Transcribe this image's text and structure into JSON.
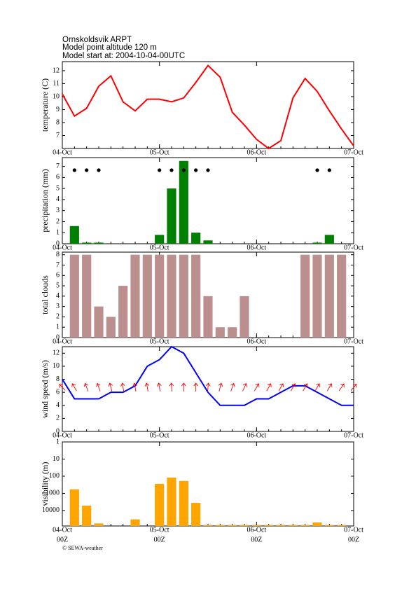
{
  "header": {
    "station": "Ornskoldsvik ARPT",
    "altitude": "Model point altitude  120 m",
    "model_start": "Model start at: 2004-10-04-00UTC"
  },
  "footer": "© SEWA-weather",
  "chart_data": [
    {
      "type": "line",
      "y_label": "temperature (C)",
      "color": "#ff0000",
      "x": [
        0,
        3,
        6,
        9,
        12,
        15,
        18,
        21,
        24,
        27,
        30,
        33,
        36,
        39,
        42,
        45,
        48,
        51,
        54,
        57,
        60,
        63,
        66,
        69,
        72
      ],
      "values": [
        10.2,
        8.5,
        9.1,
        10.8,
        11.6,
        9.6,
        8.9,
        9.8,
        9.8,
        9.6,
        9.9,
        11.1,
        12.4,
        11.5,
        8.8,
        7.8,
        6.7,
        6.0,
        6.6,
        9.9,
        11.4,
        10.4,
        8.9,
        7.5,
        6.2
      ],
      "xlim": [
        0,
        72
      ],
      "xticks": [
        {
          "value": 0,
          "label": "04-Oct"
        },
        {
          "value": 24,
          "label": "05-Oct"
        },
        {
          "value": 48,
          "label": "06-Oct"
        },
        {
          "value": 72,
          "label": "07-Oct"
        }
      ],
      "ylim": [
        6,
        12.7
      ],
      "yticks": [
        7,
        8,
        9,
        10,
        11,
        12
      ]
    },
    {
      "type": "bar",
      "y_label": "precipitation (mm)",
      "color": "#008000",
      "dots": true,
      "x": [
        3,
        6,
        9,
        12,
        15,
        18,
        21,
        24,
        27,
        30,
        33,
        36,
        39,
        42,
        45,
        48,
        51,
        54,
        57,
        60,
        63,
        66,
        69
      ],
      "values": [
        1.6,
        0.1,
        0.1,
        0,
        0,
        0,
        0,
        0.8,
        5.0,
        7.5,
        1.0,
        0.3,
        0,
        0,
        0,
        0,
        0,
        0,
        0,
        0,
        0.1,
        0.8,
        0
      ],
      "xlim": [
        0,
        72
      ],
      "xticks": [
        {
          "value": 0,
          "label": "04-Oct"
        },
        {
          "value": 24,
          "label": "05-Oct"
        },
        {
          "value": 48,
          "label": "06-Oct"
        },
        {
          "value": 72,
          "label": "07-Oct"
        }
      ],
      "ylim": [
        0,
        7.8
      ],
      "yticks": [
        0,
        1,
        2,
        3,
        4,
        5,
        6,
        7
      ]
    },
    {
      "type": "bar",
      "y_label": "total clouds",
      "color": "#bc8f8f",
      "x": [
        3,
        6,
        9,
        12,
        15,
        18,
        21,
        24,
        27,
        30,
        33,
        36,
        39,
        42,
        45,
        48,
        51,
        54,
        57,
        60,
        63,
        66,
        69
      ],
      "values": [
        8,
        8,
        3,
        2,
        5,
        8,
        8,
        8,
        8,
        8,
        8,
        4,
        1,
        1,
        4,
        0,
        0,
        0,
        0,
        8,
        8,
        8,
        8
      ],
      "xlim": [
        0,
        72
      ],
      "xticks": [
        {
          "value": 0,
          "label": "04-Oct"
        },
        {
          "value": 24,
          "label": "05-Oct"
        },
        {
          "value": 48,
          "label": "06-Oct"
        },
        {
          "value": 72,
          "label": "07-Oct"
        }
      ],
      "ylim": [
        0,
        8.25
      ],
      "yticks": [
        0,
        1,
        2,
        3,
        4,
        5,
        6,
        7,
        8
      ]
    },
    {
      "type": "line",
      "y_label": "wind speed (m/s)",
      "color": "#0000ff",
      "x": [
        0,
        3,
        6,
        9,
        12,
        15,
        18,
        21,
        24,
        27,
        30,
        33,
        36,
        39,
        42,
        45,
        48,
        51,
        54,
        57,
        60,
        63,
        66,
        69,
        72
      ],
      "values": [
        8,
        5,
        5,
        5,
        6,
        6,
        7,
        10,
        11,
        13,
        12,
        9,
        6,
        4,
        4,
        4,
        5,
        5,
        6,
        7,
        7,
        6,
        5,
        4,
        4
      ],
      "wind_direction": {
        "color": "#ff0000",
        "values": [
          135,
          150,
          160,
          160,
          165,
          170,
          170,
          170,
          170,
          175,
          180,
          180,
          185,
          195,
          200,
          205,
          210,
          210,
          210,
          210,
          210,
          210,
          210,
          215,
          220
        ]
      },
      "xlim": [
        0,
        72
      ],
      "xticks": [
        {
          "value": 0,
          "label": "04-Oct"
        },
        {
          "value": 24,
          "label": "05-Oct"
        },
        {
          "value": 48,
          "label": "06-Oct"
        },
        {
          "value": 72,
          "label": "07-Oct"
        }
      ],
      "ylim": [
        0,
        13
      ],
      "yticks": [
        0,
        2,
        4,
        6,
        8,
        10,
        12
      ]
    },
    {
      "type": "bar",
      "y_label": "visibility (m)",
      "color": "#ffa500",
      "log": true,
      "x": [
        3,
        6,
        9,
        12,
        15,
        18,
        21,
        24,
        27,
        30,
        33,
        36,
        39,
        42,
        45,
        48,
        51,
        54,
        57,
        60,
        63,
        66,
        69
      ],
      "values": [
        580,
        5200,
        57000,
        80000,
        80000,
        33000,
        80000,
        280,
        120,
        190,
        3600,
        70000,
        70000,
        70000,
        70000,
        70000,
        70000,
        70000,
        70000,
        70000,
        50000,
        70000,
        70000
      ],
      "xlim": [
        0,
        72
      ],
      "xticks": [
        {
          "value": 0,
          "label": "04-Oct"
        },
        {
          "value": 24,
          "label": "05-Oct"
        },
        {
          "value": 48,
          "label": "06-Oct"
        },
        {
          "value": 72,
          "label": "07-Oct"
        }
      ],
      "xtick_sublabels": [
        "00Z",
        "00Z",
        "00Z",
        "00Z"
      ],
      "ylim": [
        80000,
        1
      ],
      "yticks": [
        1,
        10,
        100,
        1000,
        10000
      ]
    }
  ]
}
